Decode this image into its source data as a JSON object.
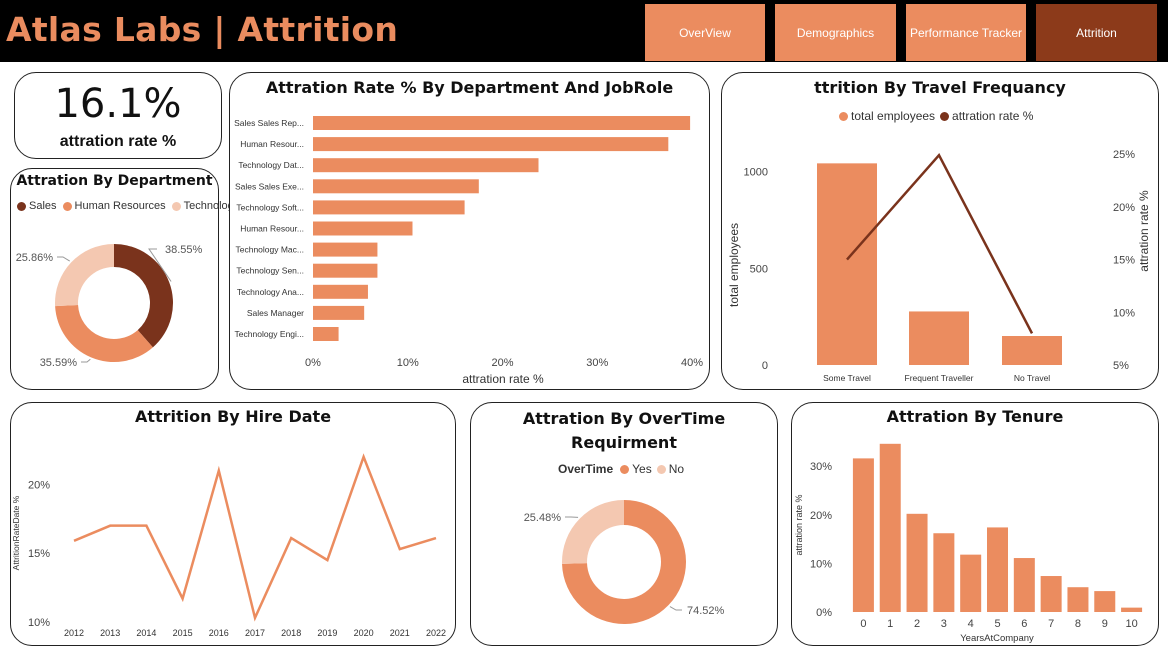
{
  "header": {
    "title": "Atlas Labs | Attrition",
    "nav": [
      {
        "label": "OverView",
        "active": false
      },
      {
        "label": "Demographics",
        "active": false
      },
      {
        "label": "Performance Tracker",
        "active": false
      },
      {
        "label": "Attrition",
        "active": true
      }
    ]
  },
  "colors": {
    "accent": "#eb8c5f",
    "dark": "#7a331c",
    "light": "#f4c8b1",
    "active_nav": "#8c3a1a"
  },
  "kpi": {
    "value": "16.1%",
    "label": "attration rate %"
  },
  "chart_data": [
    {
      "type": "pie",
      "title": "Attration By Department",
      "legend": [
        "Sales",
        "Human Resources",
        "Technology"
      ],
      "legend_placement": "top-left",
      "slices": [
        {
          "name": "Sales",
          "value": 38.55,
          "label": "38.55%",
          "color": "#7a331c"
        },
        {
          "name": "Human Resources",
          "value": 35.59,
          "label": "35.59%",
          "color": "#eb8c5f"
        },
        {
          "name": "Technology",
          "value": 25.86,
          "label": "25.86%",
          "color": "#f4c8b1"
        }
      ]
    },
    {
      "type": "bar",
      "orientation": "horizontal",
      "title": "Attration Rate % By Department And JobRole",
      "categories": [
        "Sales Sales Rep...",
        "Human Resour...",
        "Technology Dat...",
        "Sales Sales Exe...",
        "Technology Soft...",
        "Human Resour...",
        "Technology Mac...",
        "Technology Sen...",
        "Technology Ana...",
        "Sales Manager",
        "Technology Engi..."
      ],
      "values": [
        39.8,
        37.5,
        23.8,
        17.5,
        16.0,
        10.5,
        6.8,
        6.8,
        5.8,
        5.4,
        2.7
      ],
      "xlabel": "attration rate %",
      "xlim": [
        0,
        40
      ],
      "xticks": [
        "0%",
        "10%",
        "20%",
        "30%",
        "40%"
      ]
    },
    {
      "type": "bar",
      "title": "ttrition By Travel Frequancy",
      "legend": [
        "total employees",
        "attration rate %"
      ],
      "legend_placement": "top-center",
      "categories": [
        "Some Travel",
        "Frequent Traveller",
        "No Travel"
      ],
      "series": [
        {
          "name": "total employees",
          "type": "bar",
          "values": [
            1043,
            277,
            150
          ],
          "color": "#eb8c5f"
        },
        {
          "name": "attration rate %",
          "type": "line",
          "values": [
            15.0,
            24.9,
            8.0
          ],
          "color": "#7a331c"
        }
      ],
      "ylabel": "total employees",
      "ylim": [
        0,
        1200
      ],
      "yticks": [
        "0",
        "500",
        "1000"
      ],
      "y2label": "attration rate %",
      "y2lim": [
        5,
        27
      ],
      "y2ticks": [
        "5%",
        "10%",
        "15%",
        "20%",
        "25%"
      ]
    },
    {
      "type": "line",
      "title": "Attrition By Hire Date",
      "x": [
        "2012",
        "2013",
        "2014",
        "2015",
        "2016",
        "2017",
        "2018",
        "2019",
        "2020",
        "2021",
        "2022"
      ],
      "values": [
        15.9,
        17.0,
        17.0,
        11.7,
        21.0,
        10.3,
        16.1,
        14.5,
        22.0,
        15.3,
        16.1
      ],
      "ylabel": "AttritionRateDate %",
      "ylim": [
        10,
        22.5
      ],
      "yticks": [
        "10%",
        "15%",
        "20%"
      ]
    },
    {
      "type": "pie",
      "title": "Attration By OverTime Requirment",
      "legend_title": "OverTime",
      "legend": [
        "Yes",
        "No"
      ],
      "legend_placement": "top-center",
      "slices": [
        {
          "name": "Yes",
          "value": 74.52,
          "label": "74.52%",
          "color": "#eb8c5f"
        },
        {
          "name": "No",
          "value": 25.48,
          "label": "25.48%",
          "color": "#f4c8b1"
        }
      ]
    },
    {
      "type": "bar",
      "title": "Attration By Tenure",
      "categories": [
        "0",
        "1",
        "2",
        "3",
        "4",
        "5",
        "6",
        "7",
        "8",
        "9",
        "10"
      ],
      "values": [
        31.6,
        34.6,
        20.2,
        16.2,
        11.8,
        17.4,
        11.1,
        7.4,
        5.1,
        4.3,
        0.9
      ],
      "xlabel": "YearsAtCompany",
      "ylabel": "attration rate %",
      "ylim": [
        0,
        36
      ],
      "yticks": [
        "0%",
        "10%",
        "20%",
        "30%"
      ]
    }
  ]
}
